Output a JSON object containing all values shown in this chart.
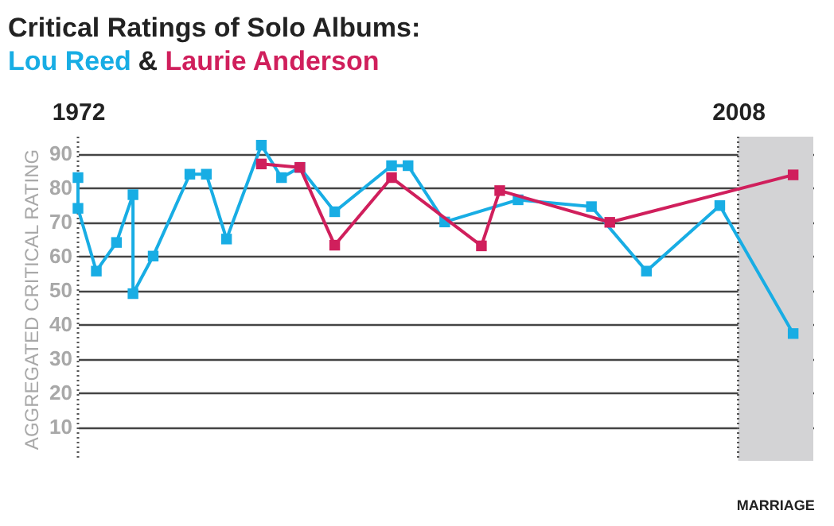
{
  "chart_data": {
    "type": "line",
    "title": "Critical Ratings of Solo Albums:",
    "annotations": [
      "&"
    ],
    "ylabel": "AGGREGATED CRITICAL RATING",
    "series": [
      {
        "name": "Lou Reed",
        "color": "#18ade4",
        "x": [
          1972,
          1972,
          1973,
          1974.1,
          1975,
          1975,
          1976.1,
          1978.1,
          1979,
          1980.1,
          1982,
          1983.1,
          1984.1,
          1986,
          1989.1,
          1990,
          1992,
          1996,
          2000,
          2003,
          2007,
          2011
        ],
        "values": [
          83,
          74,
          55.6,
          64,
          78,
          49,
          60,
          84,
          84,
          65,
          92.5,
          83,
          86,
          73,
          86.5,
          86.5,
          70,
          76.5,
          74.5,
          55.6,
          74.8,
          37.3
        ]
      },
      {
        "name": "Laurie Anderson",
        "color": "#d01f5c",
        "x": [
          1982,
          1984.1,
          1986,
          1989.1,
          1994,
          1995,
          2001,
          2011
        ],
        "values": [
          87,
          86,
          63.2,
          83,
          63,
          79.2,
          69.9,
          83.8
        ]
      }
    ],
    "xlim": [
      1972,
      2012.1
    ],
    "xticks": [
      1972,
      2008
    ],
    "ylim": [
      0,
      95
    ],
    "yticks": [
      10,
      20,
      30,
      40,
      50,
      60,
      70,
      80,
      90
    ],
    "bands": [
      {
        "axis": "x",
        "from": 2008,
        "to": 2012.1,
        "label": "MARRIAGE",
        "color": "#d3d3d5"
      }
    ],
    "ref_lines": [
      {
        "axis": "x",
        "value": 1972,
        "color": "#555555",
        "line_style": "dotted"
      },
      {
        "axis": "x",
        "value": 2008,
        "color": "#555555",
        "line_style": "dotted"
      }
    ],
    "grid": "y",
    "marker": "square",
    "line_style": "solid"
  }
}
